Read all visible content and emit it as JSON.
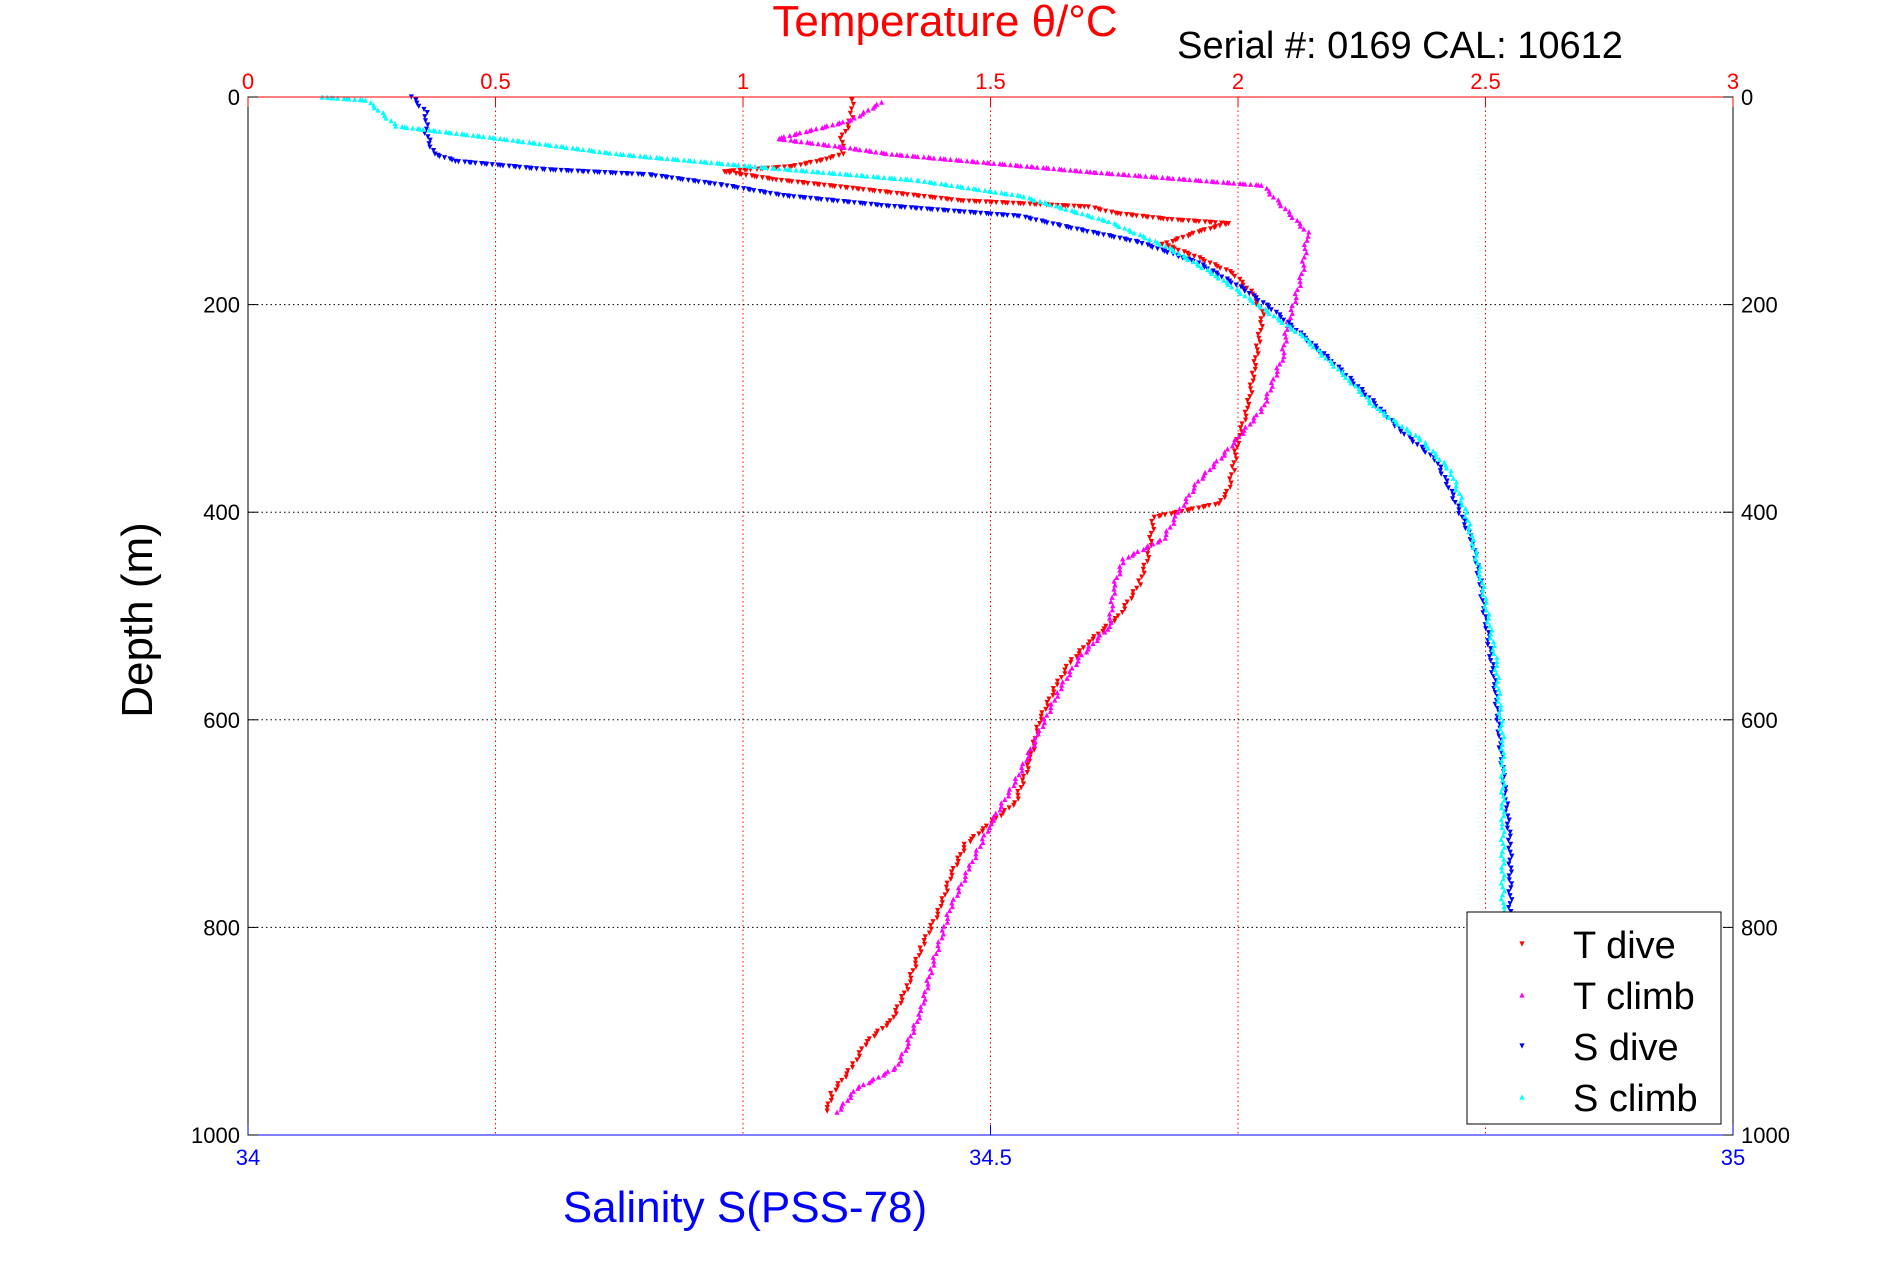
{
  "chart_data": {
    "type": "scatter",
    "title": "Temperature θ/°C",
    "subtitle": "Serial #: 0169 CAL: 10612",
    "ylabel": "Depth (m)",
    "xlabel": "Salinity S(PSS-78)",
    "top_axis": {
      "label": "Temperature θ/°C",
      "range": [
        0,
        3
      ],
      "ticks": [
        "0",
        "0.5",
        "1",
        "1.5",
        "2",
        "2.5",
        "3"
      ]
    },
    "bottom_axis": {
      "label": "Salinity S(PSS-78)",
      "range": [
        34,
        35
      ],
      "ticks": [
        "34",
        "34.5",
        "35"
      ]
    },
    "y_axis": {
      "range": [
        0,
        1000
      ],
      "reversed": true,
      "ticks": [
        "0",
        "200",
        "400",
        "600",
        "800",
        "1000"
      ]
    },
    "grid": true,
    "legend_position": "bottom-right",
    "colors": {
      "temperature_axis": "#ff0000",
      "salinity_axis": "#0000ff"
    },
    "series": [
      {
        "name": "T dive",
        "axis": "temperature",
        "color": "#ff0000",
        "marker": "triangle-down",
        "points": [
          [
            1.22,
            3
          ],
          [
            1.22,
            20
          ],
          [
            1.2,
            40
          ],
          [
            1.2,
            55
          ],
          [
            1.17,
            60
          ],
          [
            1.1,
            67
          ],
          [
            0.96,
            72
          ],
          [
            1.07,
            80
          ],
          [
            1.22,
            88
          ],
          [
            1.44,
            100
          ],
          [
            1.7,
            106
          ],
          [
            1.75,
            112
          ],
          [
            1.86,
            118
          ],
          [
            1.98,
            122
          ],
          [
            1.92,
            130
          ],
          [
            1.85,
            142
          ],
          [
            1.92,
            155
          ],
          [
            1.99,
            170
          ],
          [
            2.03,
            190
          ],
          [
            2.05,
            210
          ],
          [
            2.04,
            240
          ],
          [
            2.03,
            270
          ],
          [
            2.02,
            300
          ],
          [
            2.0,
            330
          ],
          [
            1.99,
            360
          ],
          [
            1.98,
            380
          ],
          [
            1.96,
            392
          ],
          [
            1.83,
            405
          ],
          [
            1.82,
            440
          ],
          [
            1.8,
            470
          ],
          [
            1.76,
            500
          ],
          [
            1.7,
            525
          ],
          [
            1.66,
            545
          ],
          [
            1.63,
            570
          ],
          [
            1.6,
            600
          ],
          [
            1.58,
            640
          ],
          [
            1.55,
            680
          ],
          [
            1.5,
            700
          ],
          [
            1.45,
            720
          ],
          [
            1.42,
            750
          ],
          [
            1.4,
            780
          ],
          [
            1.36,
            820
          ],
          [
            1.33,
            860
          ],
          [
            1.3,
            890
          ],
          [
            1.25,
            910
          ],
          [
            1.22,
            935
          ],
          [
            1.18,
            960
          ],
          [
            1.17,
            977
          ]
        ]
      },
      {
        "name": "T climb",
        "axis": "temperature",
        "color": "#ff00ff",
        "marker": "triangle-up",
        "points": [
          [
            1.19,
            978
          ],
          [
            1.23,
            955
          ],
          [
            1.31,
            935
          ],
          [
            1.33,
            915
          ],
          [
            1.36,
            880
          ],
          [
            1.38,
            840
          ],
          [
            1.42,
            780
          ],
          [
            1.46,
            740
          ],
          [
            1.5,
            700
          ],
          [
            1.55,
            660
          ],
          [
            1.6,
            610
          ],
          [
            1.64,
            570
          ],
          [
            1.68,
            540
          ],
          [
            1.74,
            510
          ],
          [
            1.75,
            470
          ],
          [
            1.77,
            445
          ],
          [
            1.85,
            425
          ],
          [
            1.88,
            400
          ],
          [
            1.92,
            370
          ],
          [
            1.97,
            345
          ],
          [
            2.05,
            300
          ],
          [
            2.09,
            250
          ],
          [
            2.1,
            220
          ],
          [
            2.13,
            170
          ],
          [
            2.14,
            130
          ],
          [
            2.05,
            85
          ],
          [
            1.7,
            72
          ],
          [
            1.3,
            55
          ],
          [
            1.2,
            48
          ],
          [
            1.07,
            40
          ],
          [
            1.22,
            22
          ],
          [
            1.28,
            5
          ]
        ]
      },
      {
        "name": "S dive",
        "axis": "salinity",
        "color": "#0000ff",
        "marker": "triangle-down",
        "points": [
          [
            34.11,
            0
          ],
          [
            34.12,
            15
          ],
          [
            34.12,
            35
          ],
          [
            34.125,
            55
          ],
          [
            34.14,
            62
          ],
          [
            34.2,
            70
          ],
          [
            34.27,
            75
          ],
          [
            34.32,
            85
          ],
          [
            34.36,
            95
          ],
          [
            34.43,
            105
          ],
          [
            34.52,
            115
          ],
          [
            34.55,
            125
          ],
          [
            34.6,
            140
          ],
          [
            34.64,
            160
          ],
          [
            34.67,
            185
          ],
          [
            34.69,
            205
          ],
          [
            34.71,
            230
          ],
          [
            34.73,
            255
          ],
          [
            34.755,
            290
          ],
          [
            34.775,
            320
          ],
          [
            34.8,
            350
          ],
          [
            34.81,
            380
          ],
          [
            34.825,
            430
          ],
          [
            34.83,
            470
          ],
          [
            34.835,
            520
          ],
          [
            34.84,
            570
          ],
          [
            34.845,
            650
          ],
          [
            34.85,
            720
          ],
          [
            34.85,
            800
          ],
          [
            34.85,
            880
          ],
          [
            34.845,
            940
          ],
          [
            34.84,
            977
          ]
        ]
      },
      {
        "name": "S climb",
        "axis": "salinity",
        "color": "#00ffff",
        "marker": "triangle-up",
        "points": [
          [
            34.84,
            975
          ],
          [
            34.845,
            920
          ],
          [
            34.845,
            860
          ],
          [
            34.845,
            780
          ],
          [
            34.845,
            700
          ],
          [
            34.845,
            620
          ],
          [
            34.84,
            540
          ],
          [
            34.83,
            460
          ],
          [
            34.82,
            400
          ],
          [
            34.81,
            360
          ],
          [
            34.79,
            330
          ],
          [
            34.76,
            300
          ],
          [
            34.74,
            270
          ],
          [
            34.71,
            230
          ],
          [
            34.68,
            200
          ],
          [
            34.65,
            170
          ],
          [
            34.62,
            145
          ],
          [
            34.58,
            120
          ],
          [
            34.52,
            95
          ],
          [
            34.45,
            80
          ],
          [
            34.35,
            68
          ],
          [
            34.25,
            55
          ],
          [
            34.17,
            40
          ],
          [
            34.1,
            28
          ],
          [
            34.09,
            15
          ],
          [
            34.08,
            3
          ],
          [
            34.05,
            0
          ]
        ]
      }
    ],
    "legend": [
      {
        "label": "T dive",
        "color": "#ff0000"
      },
      {
        "label": "T climb",
        "color": "#ff00ff"
      },
      {
        "label": "S dive",
        "color": "#0000ff"
      },
      {
        "label": "S climb",
        "color": "#00ffff"
      }
    ]
  }
}
